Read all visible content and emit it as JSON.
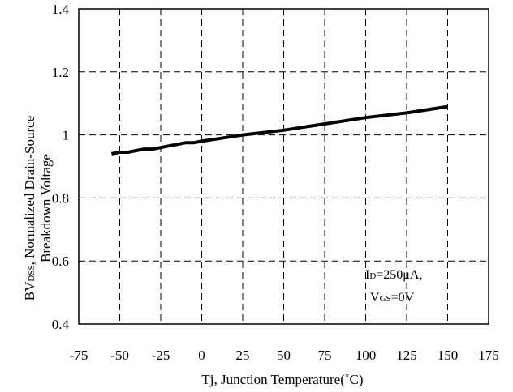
{
  "chart_data": {
    "type": "line",
    "xlabel": "Tj, Junction Temperature(˚C)",
    "ylabel": {
      "line1_prefix": "BV",
      "line1_sub": "DSS",
      "line1_rest": ", Normalized Drain-Source",
      "line2": "Breakdown Voltage"
    },
    "xlim": [
      -75,
      175
    ],
    "ylim": [
      0.4,
      1.4
    ],
    "x_ticks": [
      -75,
      -50,
      -25,
      0,
      25,
      50,
      75,
      100,
      125,
      150,
      175
    ],
    "y_ticks": [
      0.4,
      0.6,
      0.8,
      1,
      1.2,
      1.4
    ],
    "x_tick_labels": [
      "-75",
      "-50",
      "-25",
      "0",
      "25",
      "50",
      "75",
      "100",
      "125",
      "150",
      "175"
    ],
    "y_tick_labels": [
      "0.4",
      "0.6",
      "0.8",
      "1",
      "1.2",
      "1.4"
    ],
    "grid": true,
    "series": [
      {
        "x": [
          -55,
          -50,
          -45,
          -40,
          -35,
          -30,
          -25,
          -20,
          -15,
          -10,
          -5,
          0,
          10,
          25,
          50,
          75,
          100,
          125,
          150
        ],
        "y": [
          0.94,
          0.945,
          0.945,
          0.95,
          0.955,
          0.955,
          0.96,
          0.965,
          0.97,
          0.975,
          0.975,
          0.98,
          0.988,
          1.0,
          1.015,
          1.035,
          1.055,
          1.07,
          1.09
        ]
      }
    ],
    "annotation": {
      "line1_prefix": "I",
      "line1_sub": "D",
      "line1_rest": "=250μA,",
      "line2_prefix": "V",
      "line2_sub": "GS",
      "line2_rest": "=0V"
    }
  }
}
